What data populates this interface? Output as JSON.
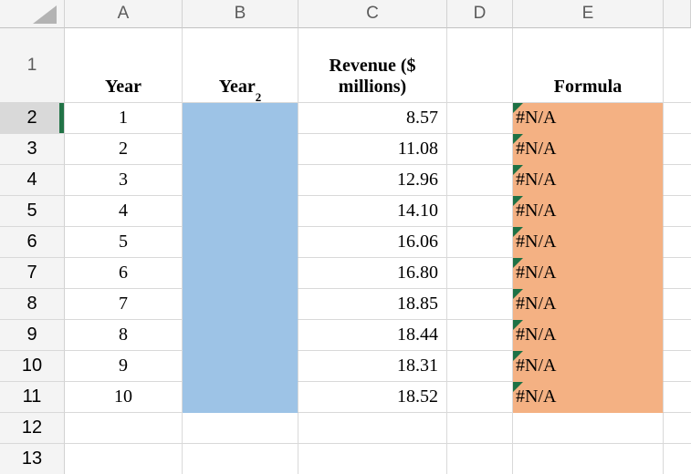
{
  "app": {
    "description": "spreadsheet grid with year, year-squared, revenue and formula columns"
  },
  "column_headers": [
    "A",
    "B",
    "C",
    "D",
    "E"
  ],
  "row1": {
    "row_num": "1",
    "a": "Year",
    "b_base": "Year",
    "b_sup": "2",
    "c": "Revenue ($ millions)",
    "d": "",
    "e": "Formula"
  },
  "rows": [
    {
      "num": "2",
      "year": "1",
      "year_sq": "",
      "revenue": "8.57",
      "formula": "#N/A",
      "selected": true,
      "filled": true
    },
    {
      "num": "3",
      "year": "2",
      "year_sq": "",
      "revenue": "11.08",
      "formula": "#N/A",
      "selected": false,
      "filled": true
    },
    {
      "num": "4",
      "year": "3",
      "year_sq": "",
      "revenue": "12.96",
      "formula": "#N/A",
      "selected": false,
      "filled": true
    },
    {
      "num": "5",
      "year": "4",
      "year_sq": "",
      "revenue": "14.10",
      "formula": "#N/A",
      "selected": false,
      "filled": true
    },
    {
      "num": "6",
      "year": "5",
      "year_sq": "",
      "revenue": "16.06",
      "formula": "#N/A",
      "selected": false,
      "filled": true
    },
    {
      "num": "7",
      "year": "6",
      "year_sq": "",
      "revenue": "16.80",
      "formula": "#N/A",
      "selected": false,
      "filled": true
    },
    {
      "num": "8",
      "year": "7",
      "year_sq": "",
      "revenue": "18.85",
      "formula": "#N/A",
      "selected": false,
      "filled": true
    },
    {
      "num": "9",
      "year": "8",
      "year_sq": "",
      "revenue": "18.44",
      "formula": "#N/A",
      "selected": false,
      "filled": true
    },
    {
      "num": "10",
      "year": "9",
      "year_sq": "",
      "revenue": "18.31",
      "formula": "#N/A",
      "selected": false,
      "filled": true
    },
    {
      "num": "11",
      "year": "10",
      "year_sq": "",
      "revenue": "18.52",
      "formula": "#N/A",
      "selected": false,
      "filled": true
    },
    {
      "num": "12",
      "year": "",
      "year_sq": "",
      "revenue": "",
      "formula": "",
      "selected": false,
      "filled": false
    },
    {
      "num": "13",
      "year": "",
      "year_sq": "",
      "revenue": "",
      "formula": "",
      "selected": false,
      "filled": false
    }
  ],
  "colors": {
    "fill_blue": "#9dc3e6",
    "fill_orange": "#f4b183",
    "error_triangle_green": "#1e7145",
    "selection_green": "#217346",
    "header_bg": "#f4f4f4",
    "selected_header_bg": "#d9d9d9",
    "gridline": "#d9d9d9",
    "header_text": "#5c5c5c"
  }
}
